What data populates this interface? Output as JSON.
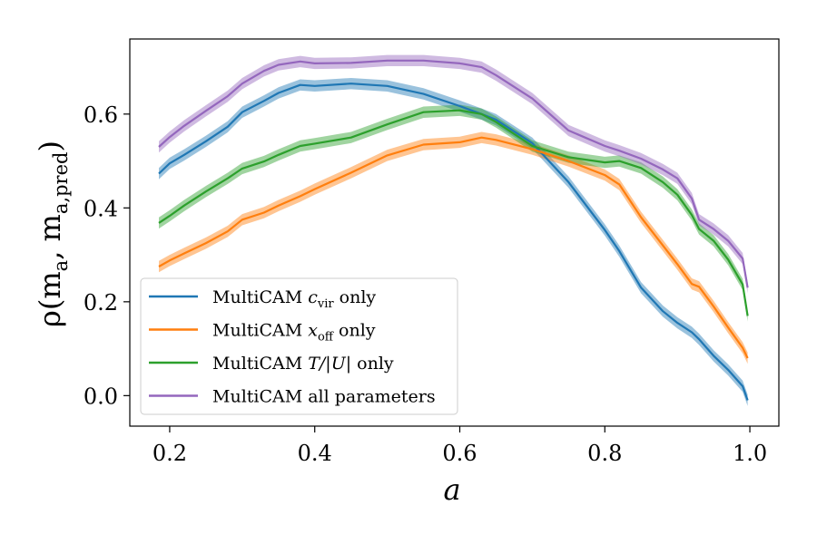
{
  "chart_data": {
    "type": "line",
    "xlabel": "a",
    "ylabel": "ρ(m_a, m_a,pred)",
    "xlim": [
      0.145,
      1.04
    ],
    "ylim": [
      -0.065,
      0.76
    ],
    "xticks": [
      0.2,
      0.4,
      0.6,
      0.8,
      1.0
    ],
    "xtick_labels": [
      "0.2",
      "0.4",
      "0.6",
      "0.8",
      "1.0"
    ],
    "yticks": [
      0.0,
      0.2,
      0.4,
      0.6
    ],
    "ytick_labels": [
      "0.0",
      "0.2",
      "0.4",
      "0.6"
    ],
    "grid": false,
    "legend_position": "lower-left",
    "x": [
      0.185,
      0.2,
      0.22,
      0.25,
      0.28,
      0.3,
      0.33,
      0.35,
      0.38,
      0.4,
      0.45,
      0.5,
      0.55,
      0.6,
      0.63,
      0.65,
      0.7,
      0.75,
      0.8,
      0.82,
      0.85,
      0.88,
      0.9,
      0.92,
      0.93,
      0.95,
      0.97,
      0.99,
      0.997
    ],
    "series": [
      {
        "name": "MultiCAM c_vir only",
        "color": "#1f77b4",
        "values": [
          0.473,
          0.495,
          0.513,
          0.542,
          0.573,
          0.604,
          0.628,
          0.645,
          0.662,
          0.66,
          0.665,
          0.66,
          0.643,
          0.617,
          0.6,
          0.588,
          0.538,
          0.455,
          0.353,
          0.308,
          0.23,
          0.18,
          0.155,
          0.135,
          0.12,
          0.085,
          0.055,
          0.02,
          -0.01
        ]
      },
      {
        "name": "MultiCAM x_off only",
        "color": "#ff7f0e",
        "values": [
          0.275,
          0.288,
          0.303,
          0.325,
          0.35,
          0.375,
          0.39,
          0.405,
          0.425,
          0.44,
          0.475,
          0.512,
          0.535,
          0.54,
          0.55,
          0.545,
          0.525,
          0.5,
          0.47,
          0.45,
          0.38,
          0.32,
          0.28,
          0.238,
          0.232,
          0.19,
          0.145,
          0.102,
          0.08
        ]
      },
      {
        "name": "MultiCAM T/|U| only",
        "color": "#2ca02c",
        "values": [
          0.368,
          0.383,
          0.405,
          0.435,
          0.463,
          0.484,
          0.499,
          0.513,
          0.532,
          0.537,
          0.55,
          0.578,
          0.604,
          0.608,
          0.6,
          0.583,
          0.532,
          0.508,
          0.497,
          0.5,
          0.485,
          0.455,
          0.428,
          0.385,
          0.355,
          0.33,
          0.29,
          0.237,
          0.17
        ]
      },
      {
        "name": "MultiCAM all parameters",
        "color": "#9467bd",
        "values": [
          0.53,
          0.551,
          0.575,
          0.607,
          0.638,
          0.665,
          0.692,
          0.705,
          0.712,
          0.708,
          0.709,
          0.714,
          0.714,
          0.708,
          0.7,
          0.683,
          0.633,
          0.565,
          0.532,
          0.522,
          0.505,
          0.482,
          0.463,
          0.42,
          0.375,
          0.355,
          0.33,
          0.292,
          0.23
        ]
      }
    ]
  },
  "legend": {
    "items": [
      {
        "prefix": "MultiCAM ",
        "math": "c",
        "sub": "vir",
        "suffix": " only"
      },
      {
        "prefix": "MultiCAM ",
        "math": "x",
        "sub": "off",
        "suffix": " only"
      },
      {
        "prefix": "MultiCAM ",
        "math": "T/|U|",
        "sub": "",
        "suffix": " only"
      },
      {
        "prefix": "MultiCAM all parameters",
        "math": "",
        "sub": "",
        "suffix": ""
      }
    ]
  },
  "ylabel_parts": {
    "rho": "ρ",
    "open": "(",
    "m1": "m",
    "s1": "a",
    "comma": ", ",
    "m2": "m",
    "s2": "a,",
    "s2b": "pred",
    "close": ")"
  }
}
